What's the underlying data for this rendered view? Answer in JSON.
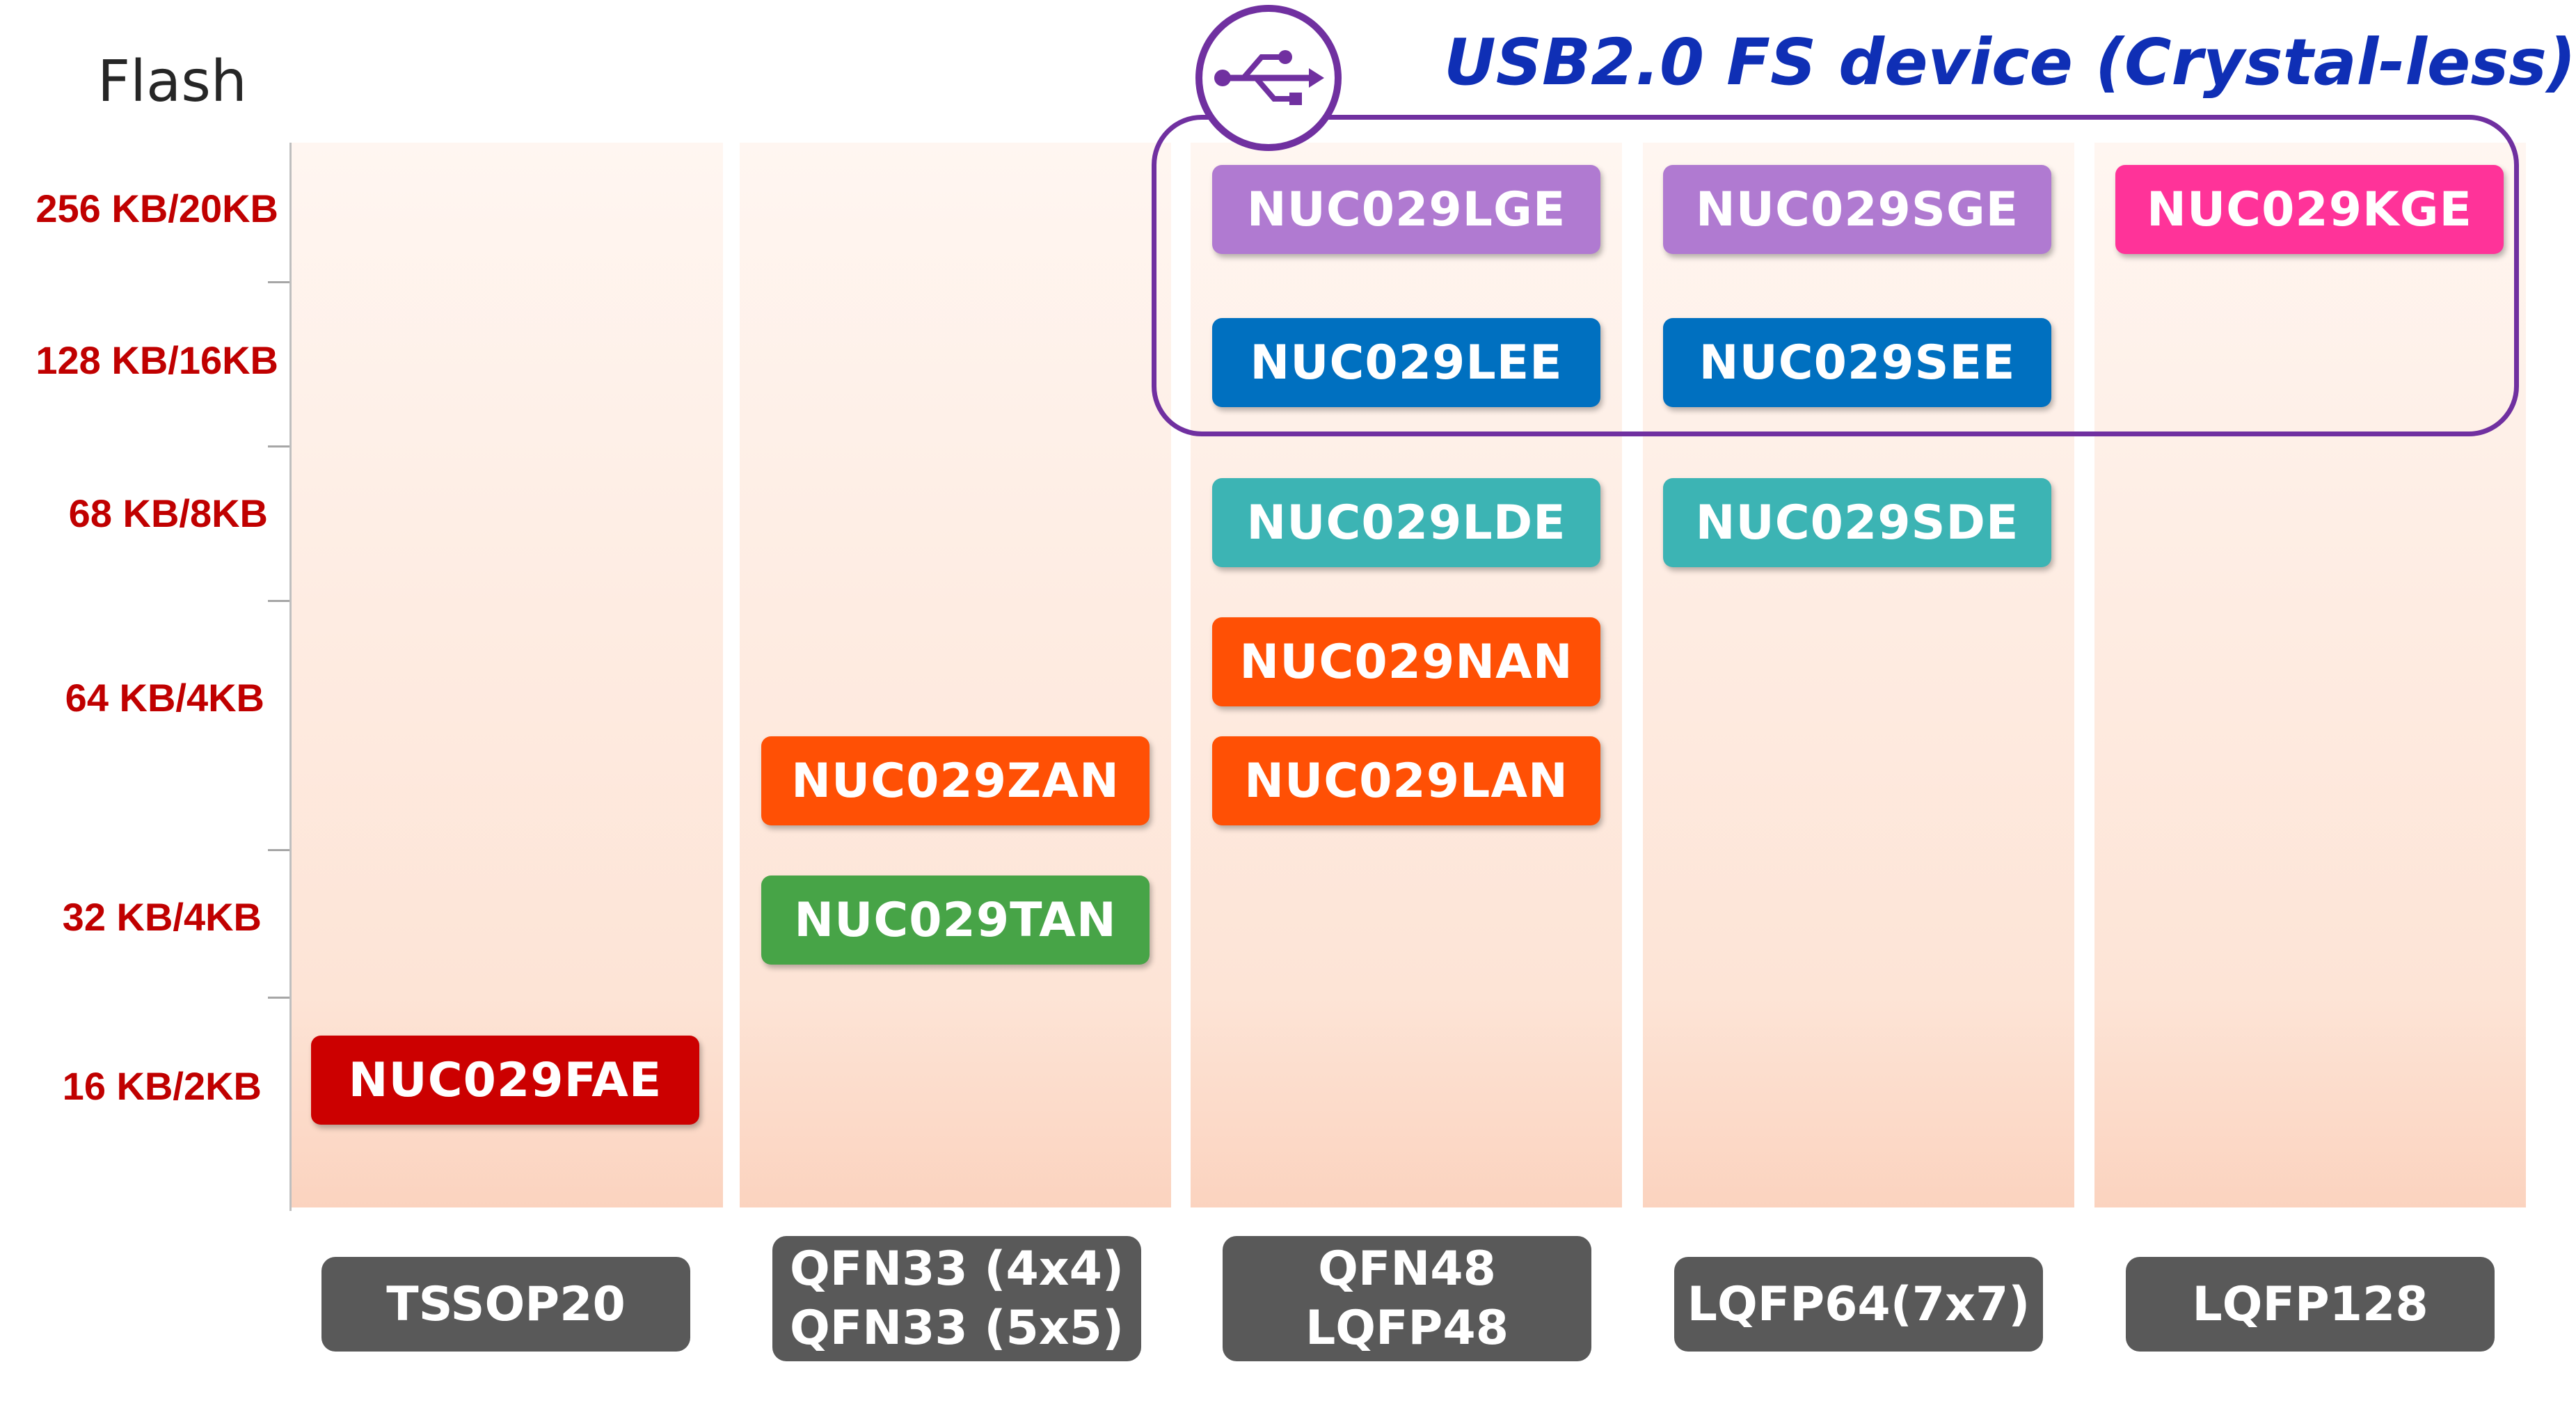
{
  "axis_title": "Flash",
  "rows": [
    {
      "label": "256 KB/20KB"
    },
    {
      "label": "128 KB/16KB"
    },
    {
      "label": "68 KB/8KB"
    },
    {
      "label": "64 KB/4KB"
    },
    {
      "label": "32 KB/4KB"
    },
    {
      "label": "16 KB/2KB"
    }
  ],
  "packages": [
    {
      "lines": [
        "TSSOP20"
      ]
    },
    {
      "lines": [
        "QFN33 (4x4)",
        "QFN33 (5x5)"
      ]
    },
    {
      "lines": [
        "QFN48",
        "LQFP48"
      ]
    },
    {
      "lines": [
        "LQFP64(7x7)"
      ]
    },
    {
      "lines": [
        "LQFP128"
      ]
    }
  ],
  "chips": [
    {
      "name": "NUC029LGE",
      "color": "#b07ad1"
    },
    {
      "name": "NUC029SGE",
      "color": "#b07ad1"
    },
    {
      "name": "NUC029KGE",
      "color": "#ff3399"
    },
    {
      "name": "NUC029LEE",
      "color": "#0070c0"
    },
    {
      "name": "NUC029SEE",
      "color": "#0070c0"
    },
    {
      "name": "NUC029LDE",
      "color": "#3cb4b4"
    },
    {
      "name": "NUC029SDE",
      "color": "#3cb4b4"
    },
    {
      "name": "NUC029NAN",
      "color": "#ff5005"
    },
    {
      "name": "NUC029ZAN",
      "color": "#ff5005"
    },
    {
      "name": "NUC029LAN",
      "color": "#ff5005"
    },
    {
      "name": "NUC029TAN",
      "color": "#47a447"
    },
    {
      "name": "NUC029FAE",
      "color": "#cc0000"
    }
  ],
  "usb_group": {
    "title": "USB2.0 FS device (Crystal-less)",
    "icon": "usb-icon",
    "color": "#7030a0"
  }
}
